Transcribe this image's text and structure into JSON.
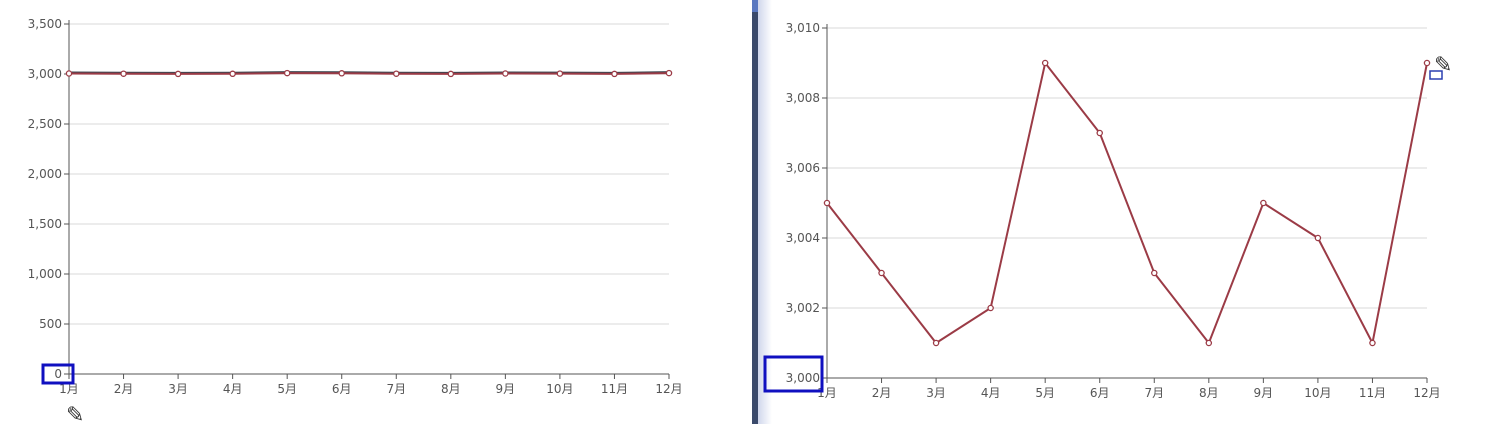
{
  "chart_data": [
    {
      "type": "line",
      "categories": [
        "1月",
        "2月",
        "3月",
        "4月",
        "5月",
        "6月",
        "7月",
        "8月",
        "9月",
        "10月",
        "11月",
        "12月"
      ],
      "series": [
        {
          "values": [
            3005,
            3003,
            3001,
            3002,
            3009,
            3007,
            3003,
            3001,
            3005,
            3004,
            3001,
            3009
          ]
        }
      ],
      "ylim": [
        0,
        3500
      ],
      "yticks": [
        "0",
        "500",
        "1,000",
        "1,500",
        "2,000",
        "2,500",
        "3,000",
        "3,500"
      ],
      "ytick_values": [
        0,
        500,
        1000,
        1500,
        2000,
        2500,
        3000,
        3500
      ],
      "grid": true,
      "line_color": "#9b3b46",
      "highlight_label": "0"
    },
    {
      "type": "line",
      "categories": [
        "1月",
        "2月",
        "3月",
        "4月",
        "5月",
        "6月",
        "7月",
        "8月",
        "9月",
        "10月",
        "11月",
        "12月"
      ],
      "series": [
        {
          "values": [
            3005,
            3003,
            3001,
            3002,
            3009,
            3007,
            3003,
            3001,
            3005,
            3004,
            3001,
            3009
          ]
        }
      ],
      "ylim": [
        3000,
        3010
      ],
      "yticks": [
        "3,000",
        "3,002",
        "3,004",
        "3,006",
        "3,008",
        "3,010"
      ],
      "ytick_values": [
        3000,
        3002,
        3004,
        3006,
        3008,
        3010
      ],
      "grid": true,
      "line_color": "#9b3b46",
      "highlight_label": "3,000"
    }
  ]
}
